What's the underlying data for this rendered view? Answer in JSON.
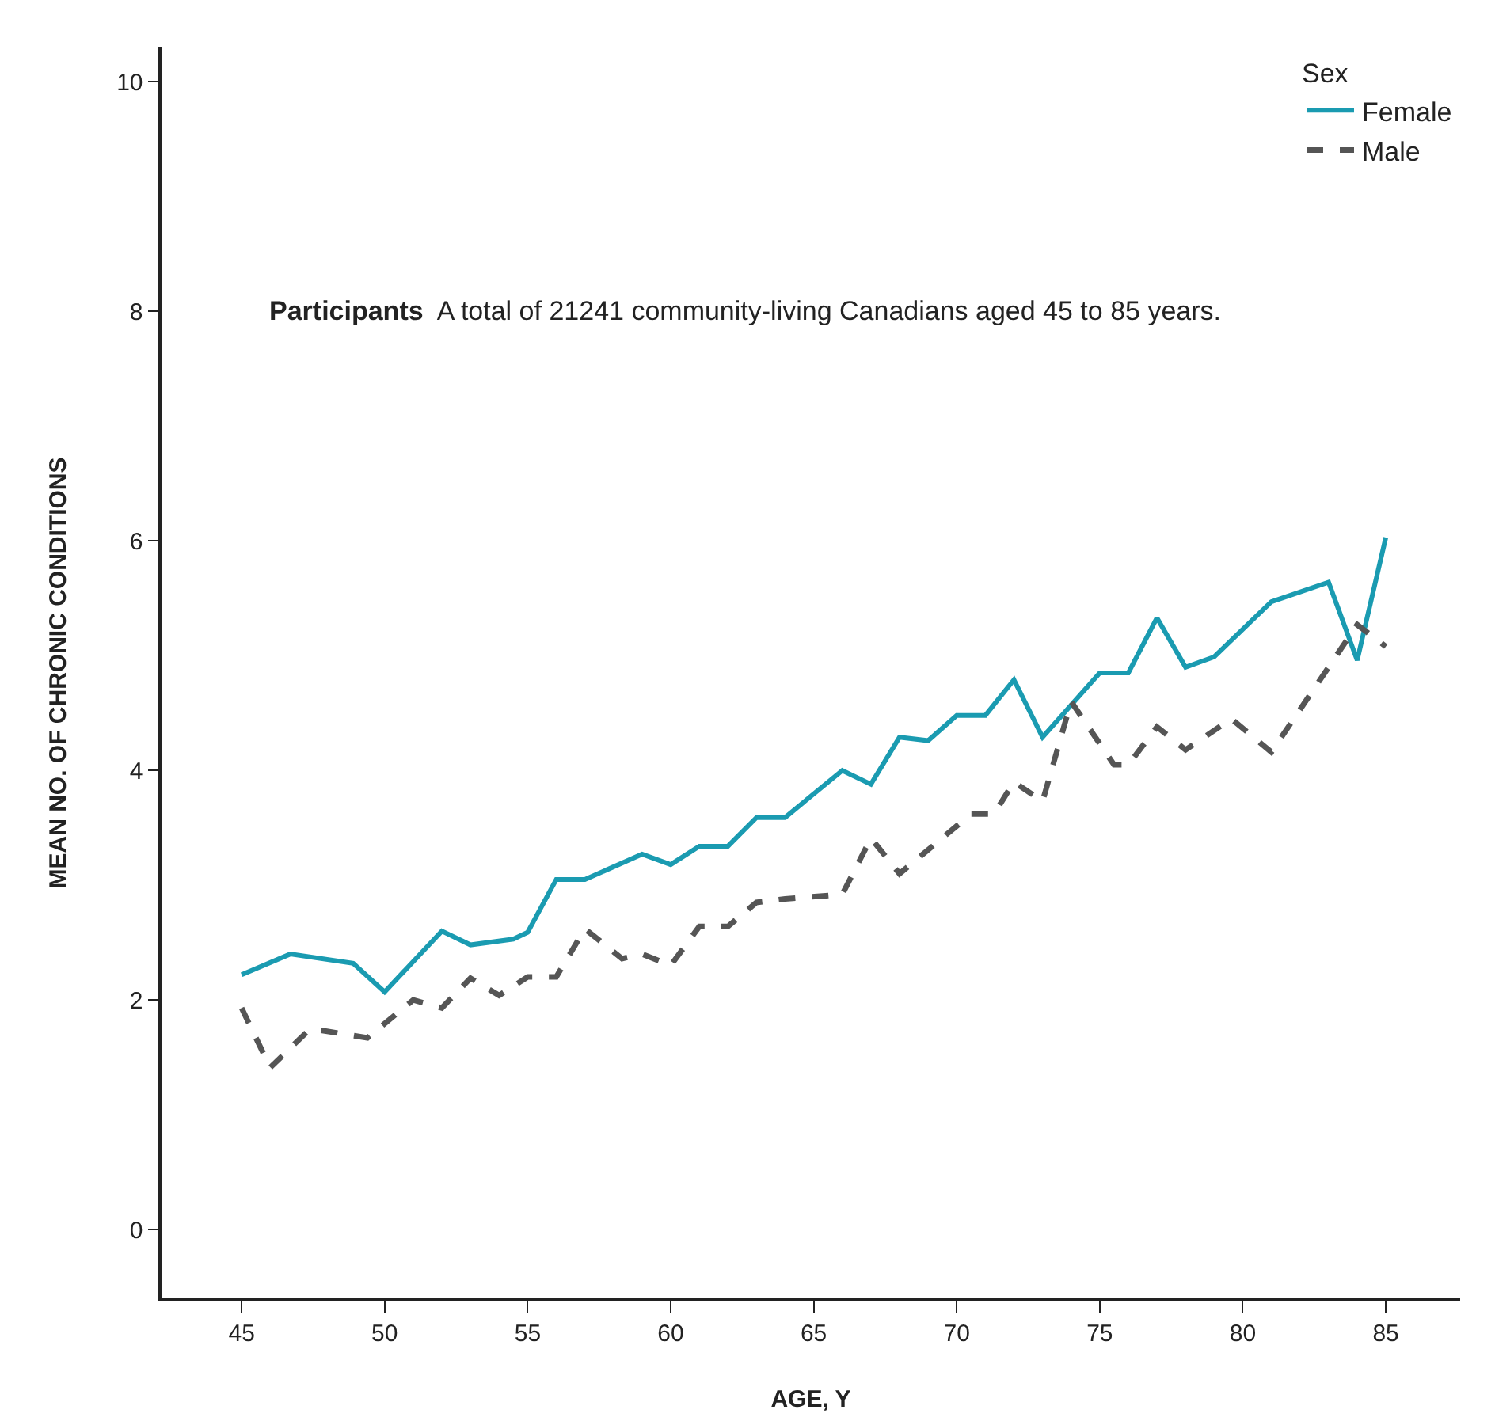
{
  "chart_data": {
    "type": "line",
    "xlabel": "AGE, Y",
    "ylabel": "MEAN NO. OF CHRONIC CONDITIONS",
    "legend_title": "Sex",
    "legend": "top right",
    "annotations": [
      "Participants",
      "A total of 21241 community-living Canadians aged 45 to 85 years."
    ],
    "xlim": [
      42.2,
      87.6
    ],
    "xticks": [
      45,
      50,
      55,
      60,
      65,
      70,
      75,
      80,
      85
    ],
    "ylim": [
      -0.6,
      10.3
    ],
    "yticks": [
      0,
      2,
      4,
      6,
      8,
      10
    ],
    "series": [
      {
        "name": "Female",
        "color": "#1a9bb1",
        "line_style": "solid",
        "x": [
          45,
          46.7,
          48.9,
          50,
          52,
          53,
          54.5,
          55,
          56,
          57,
          59,
          60,
          61,
          62,
          63,
          64,
          66,
          67,
          68,
          69,
          70,
          71,
          72,
          73,
          75,
          76,
          77,
          78,
          79,
          81,
          83,
          84,
          85
        ],
        "values": [
          2.22,
          2.4,
          2.32,
          2.07,
          2.6,
          2.48,
          2.53,
          2.59,
          3.05,
          3.05,
          3.27,
          3.18,
          3.34,
          3.34,
          3.59,
          3.59,
          4.0,
          3.88,
          4.29,
          4.26,
          4.48,
          4.48,
          4.79,
          4.29,
          4.85,
          4.85,
          5.33,
          4.9,
          4.99,
          5.47,
          5.64,
          4.96,
          6.03
        ]
      },
      {
        "name": "Male",
        "color": "#555555",
        "line_style": "dashed",
        "x": [
          45,
          46,
          47.4,
          49.4,
          51,
          52,
          53,
          54,
          55,
          56,
          57,
          58.3,
          59,
          60,
          61,
          62,
          63,
          64,
          66,
          67,
          68,
          70.5,
          71.3,
          72,
          73,
          74,
          75.5,
          76,
          77,
          78,
          79.6,
          81,
          84,
          85
        ],
        "values": [
          1.93,
          1.41,
          1.75,
          1.67,
          2.0,
          1.93,
          2.19,
          2.04,
          2.2,
          2.2,
          2.62,
          2.36,
          2.4,
          2.3,
          2.64,
          2.64,
          2.85,
          2.88,
          2.92,
          3.41,
          3.1,
          3.62,
          3.62,
          3.9,
          3.73,
          4.6,
          4.05,
          4.05,
          4.38,
          4.18,
          4.45,
          4.16,
          5.27,
          5.08
        ]
      }
    ]
  }
}
